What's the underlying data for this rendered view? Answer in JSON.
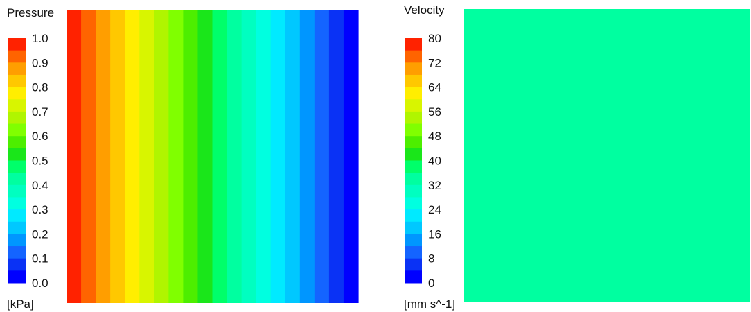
{
  "chart_data": [
    {
      "type": "heatmap",
      "title": "Pressure",
      "unit": "[kPa]",
      "colorbar": {
        "min": 0.0,
        "max": 1.0,
        "levels": 20,
        "tick_labels": [
          "1.0",
          "0.9",
          "0.8",
          "0.7",
          "0.6",
          "0.5",
          "0.4",
          "0.3",
          "0.2",
          "0.1",
          "0.0"
        ]
      },
      "field": {
        "direction": "linear decrease from left to right",
        "left_value": 1.0,
        "right_value": 0.0
      },
      "grid": false
    },
    {
      "type": "heatmap",
      "title": "Velocity",
      "unit": "[mm s^-1]",
      "colorbar": {
        "min": 0,
        "max": 80,
        "levels": 20,
        "tick_labels": [
          "80",
          "72",
          "64",
          "56",
          "48",
          "40",
          "32",
          "24",
          "16",
          "8",
          "0"
        ]
      },
      "field": {
        "direction": "uniform",
        "value": 34
      },
      "grid": false
    }
  ],
  "palette": [
    "#0000ff",
    "#0a32f5",
    "#1464ff",
    "#0096ff",
    "#00c8ff",
    "#00eaff",
    "#00ffe0",
    "#00ffc0",
    "#00ffa0",
    "#00ff6a",
    "#1ae61a",
    "#4dee00",
    "#80ff00",
    "#b0f500",
    "#d8f500",
    "#ffee00",
    "#ffc800",
    "#ff9e00",
    "#ff6400",
    "#ff2200"
  ]
}
